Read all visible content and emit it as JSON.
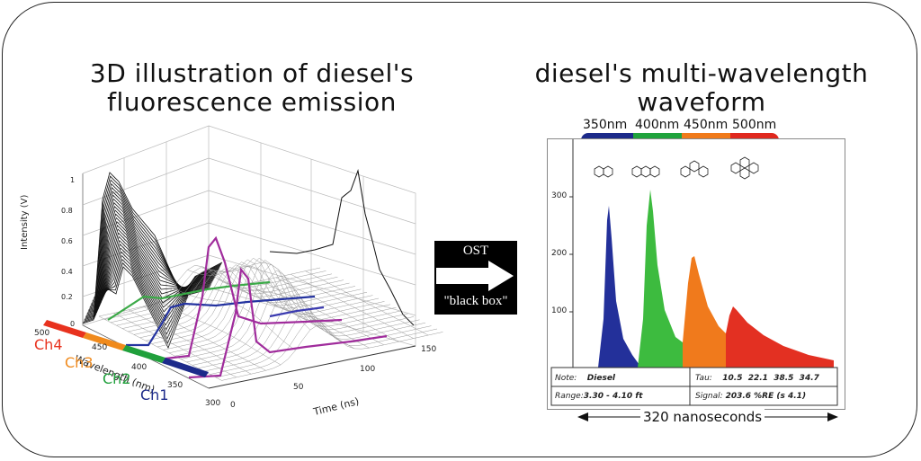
{
  "left_title": {
    "line1": "3D illustration of diesel's",
    "line2": "fluorescence emission"
  },
  "right_title": {
    "line1": "diesel's multi-wavelength",
    "line2": "waveform"
  },
  "plot3d": {
    "ylabel": "Intensity (V)",
    "yticks": [
      "1",
      "0.8",
      "0.6",
      "0.4",
      "0.2",
      "0"
    ],
    "time_label": "Time (ns)",
    "time_ticks": [
      "0",
      "50",
      "100",
      "150"
    ],
    "wavelength_label": "Wavelength (nm)",
    "wavelength_ticks": [
      "500",
      "450",
      "400",
      "350",
      "300"
    ],
    "channels": [
      {
        "label": "Ch4",
        "color": "#e8321e"
      },
      {
        "label": "Ch3",
        "color": "#f08a1c"
      },
      {
        "label": "Ch2",
        "color": "#20a03c"
      },
      {
        "label": "Ch1",
        "color": "#1c2a8a"
      }
    ]
  },
  "ost": {
    "top": "OST",
    "bottom": "\"black box\""
  },
  "waveform": {
    "wavelengths": [
      {
        "label": "350nm",
        "color": "#1c2a8a"
      },
      {
        "label": "400nm",
        "color": "#1fa33c"
      },
      {
        "label": "450nm",
        "color": "#f07a1a"
      },
      {
        "label": "500nm",
        "color": "#e0281e"
      }
    ],
    "yticks": [
      "300",
      "200",
      "100"
    ],
    "note_label": "Note:",
    "note_value": "Diesel",
    "tau_label": "Tau:",
    "tau_value": "10.5  22.1  38.5  34.7",
    "range_label": "Range:",
    "range_value": "3.30 - 4.10 ft",
    "signal_label": "Signal:",
    "signal_value": "203.6 %RE (s 4.1)",
    "time_span": "320 nanoseconds"
  }
}
